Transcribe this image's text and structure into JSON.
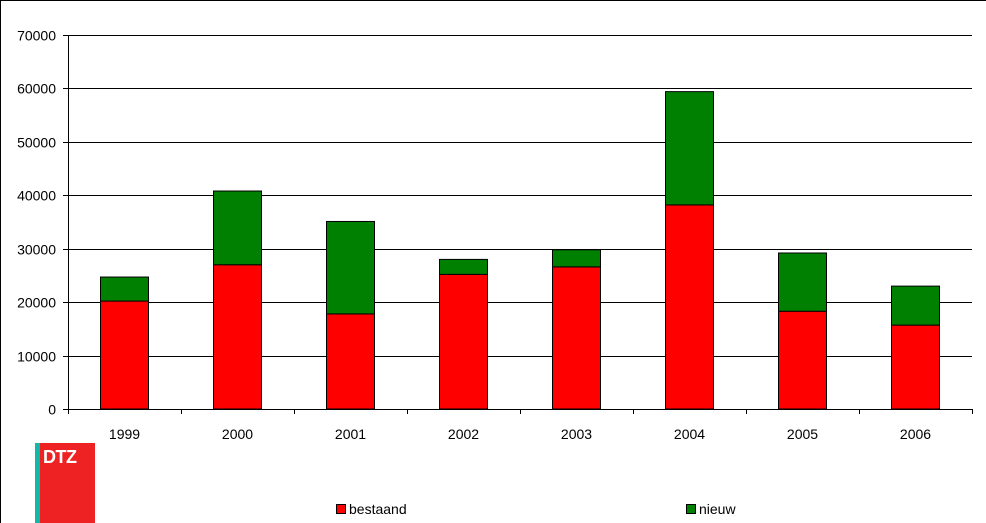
{
  "colors": {
    "bestaand": "#ff0000",
    "nieuw": "#008000",
    "logo_stripe": "#12b7a8",
    "logo_box": "#ee2222"
  },
  "logo": {
    "text": "DTZ"
  },
  "legend": {
    "bestaand_label": "bestaand",
    "nieuw_label": "nieuw"
  },
  "chart_data": {
    "type": "bar",
    "stacked": true,
    "categories": [
      "1999",
      "2000",
      "2001",
      "2002",
      "2003",
      "2004",
      "2005",
      "2006"
    ],
    "series": [
      {
        "name": "bestaand",
        "values": [
          20200,
          27000,
          17800,
          25200,
          26600,
          38200,
          18300,
          15700
        ]
      },
      {
        "name": "nieuw",
        "values": [
          4500,
          13800,
          17300,
          2800,
          3200,
          21200,
          10900,
          7300
        ]
      }
    ],
    "ylim": [
      0,
      70000
    ],
    "yticks": [
      0,
      10000,
      20000,
      30000,
      40000,
      50000,
      60000,
      70000
    ],
    "grid": true,
    "legend_position": "bottom"
  }
}
